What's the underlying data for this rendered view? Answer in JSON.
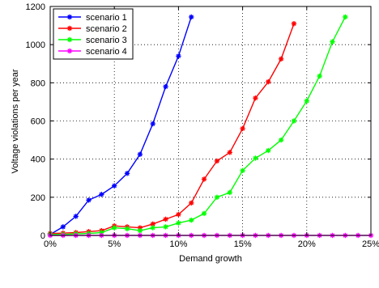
{
  "chart_data": {
    "type": "line",
    "title": "",
    "xlabel": "Demand growth",
    "ylabel": "Voltage violations per year",
    "xlim": [
      0,
      25
    ],
    "ylim": [
      0,
      1200
    ],
    "x_unit_suffix": "%",
    "x_ticks": [
      0,
      5,
      10,
      15,
      20,
      25
    ],
    "y_ticks": [
      0,
      200,
      400,
      600,
      800,
      1000,
      1200
    ],
    "grid": "dotted",
    "legend_position": "top-left",
    "series": [
      {
        "name": "scenario 1",
        "color": "#0000ff",
        "x": [
          0,
          1,
          2,
          3,
          4,
          5,
          6,
          7,
          8,
          9,
          10,
          11
        ],
        "y": [
          5,
          45,
          100,
          185,
          215,
          260,
          325,
          425,
          585,
          780,
          940,
          1145
        ]
      },
      {
        "name": "scenario 2",
        "color": "#ff0000",
        "x": [
          0,
          1,
          2,
          3,
          4,
          5,
          6,
          7,
          8,
          9,
          10,
          11,
          12,
          13,
          14,
          15,
          16,
          17,
          18,
          19
        ],
        "y": [
          10,
          12,
          15,
          20,
          25,
          50,
          45,
          40,
          60,
          85,
          110,
          170,
          295,
          390,
          435,
          560,
          720,
          805,
          925,
          1110
        ]
      },
      {
        "name": "scenario 3",
        "color": "#00ff00",
        "x": [
          0,
          1,
          2,
          3,
          4,
          5,
          6,
          7,
          8,
          9,
          10,
          11,
          12,
          13,
          14,
          15,
          16,
          17,
          18,
          19,
          20,
          21,
          22,
          23
        ],
        "y": [
          5,
          5,
          8,
          10,
          15,
          40,
          35,
          25,
          40,
          45,
          65,
          80,
          115,
          200,
          225,
          340,
          405,
          445,
          500,
          600,
          705,
          835,
          1015,
          1145
        ]
      },
      {
        "name": "scenario 4",
        "color": "#ff00ff",
        "x": [
          0,
          1,
          2,
          3,
          4,
          5,
          6,
          7,
          8,
          9,
          10,
          11,
          12,
          13,
          14,
          15,
          16,
          17,
          18,
          19,
          20,
          21,
          22,
          23,
          24,
          25
        ],
        "y": [
          0,
          0,
          0,
          0,
          0,
          0,
          0,
          0,
          0,
          0,
          0,
          0,
          0,
          0,
          0,
          0,
          0,
          0,
          0,
          0,
          0,
          0,
          0,
          0,
          0,
          0
        ]
      }
    ]
  }
}
